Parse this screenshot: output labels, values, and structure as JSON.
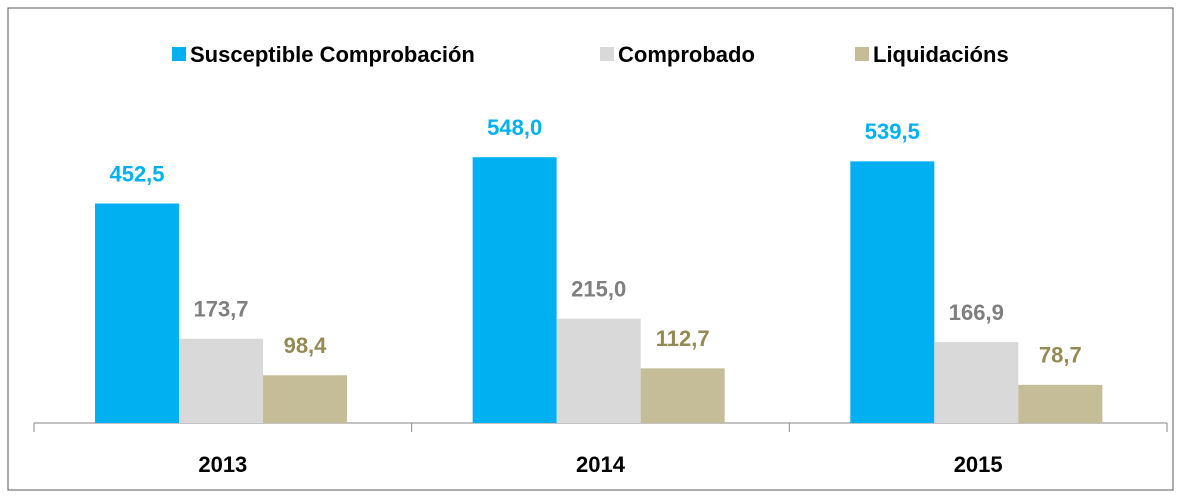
{
  "chart_data": {
    "type": "bar",
    "categories": [
      "2013",
      "2014",
      "2015"
    ],
    "series": [
      {
        "name": "Susceptible Comprobación",
        "color": "#00b0f0",
        "label_color": "#00b0f0",
        "values": [
          452.5,
          548.0,
          539.5
        ],
        "value_labels": [
          "452,5",
          "548,0",
          "539,5"
        ]
      },
      {
        "name": "Comprobado",
        "color": "#d9d9d9",
        "label_color": "#7f7f7f",
        "values": [
          173.7,
          215.0,
          166.9
        ],
        "value_labels": [
          "173,7",
          "215,0",
          "166,9"
        ]
      },
      {
        "name": "Liquidacións",
        "color": "#c4bd97",
        "label_color": "#948a54",
        "values": [
          98.4,
          112.7,
          78.7
        ],
        "value_labels": [
          "98,4",
          "112,7",
          "78,7"
        ]
      }
    ],
    "ylim": [
      0,
      600
    ],
    "grid": false,
    "legend": "top"
  }
}
